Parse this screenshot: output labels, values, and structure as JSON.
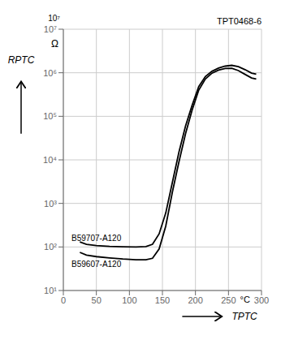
{
  "chart_data": {
    "type": "line",
    "title": "TPT0468-6",
    "log": "y",
    "grid": true,
    "xlabel": "TPTC",
    "ylabel": "RPTC",
    "annotations": [
      "10⁷",
      "Ω",
      "°C"
    ],
    "xlim": [
      0,
      300
    ],
    "ylim": [
      10,
      10000000
    ],
    "xticks": [
      0,
      50,
      100,
      150,
      200,
      250,
      300
    ],
    "yticks": [
      {
        "value": 10,
        "label": "10¹"
      },
      {
        "value": 100,
        "label": "10²"
      },
      {
        "value": 1000,
        "label": "10³"
      },
      {
        "value": 10000,
        "label": "10⁴"
      },
      {
        "value": 100000,
        "label": "10⁵"
      },
      {
        "value": 1000000,
        "label": "10⁶"
      },
      {
        "value": 10000000,
        "label": "10⁷"
      }
    ],
    "series": [
      {
        "name": "B59707-A120",
        "color": "#000000",
        "x": [
          25,
          35,
          50,
          70,
          90,
          110,
          125,
          135,
          145,
          155,
          165,
          175,
          185,
          195,
          205,
          215,
          225,
          235,
          245,
          255,
          265,
          275,
          285,
          292
        ],
        "values": [
          130,
          115,
          108,
          103,
          101,
          100,
          102,
          115,
          200,
          600,
          3000,
          15000,
          60000,
          180000,
          480000,
          820000,
          1080000,
          1280000,
          1420000,
          1480000,
          1380000,
          1180000,
          980000,
          930000
        ]
      },
      {
        "name": "B59607-A120",
        "color": "#000000",
        "x": [
          25,
          35,
          50,
          70,
          90,
          110,
          125,
          135,
          145,
          155,
          165,
          175,
          185,
          195,
          205,
          215,
          225,
          235,
          245,
          255,
          265,
          275,
          285,
          292
        ],
        "values": [
          75,
          65,
          60,
          56,
          53,
          51,
          51,
          55,
          90,
          300,
          1800,
          9000,
          40000,
          140000,
          400000,
          720000,
          980000,
          1150000,
          1260000,
          1270000,
          1120000,
          920000,
          760000,
          720000
        ]
      }
    ]
  }
}
